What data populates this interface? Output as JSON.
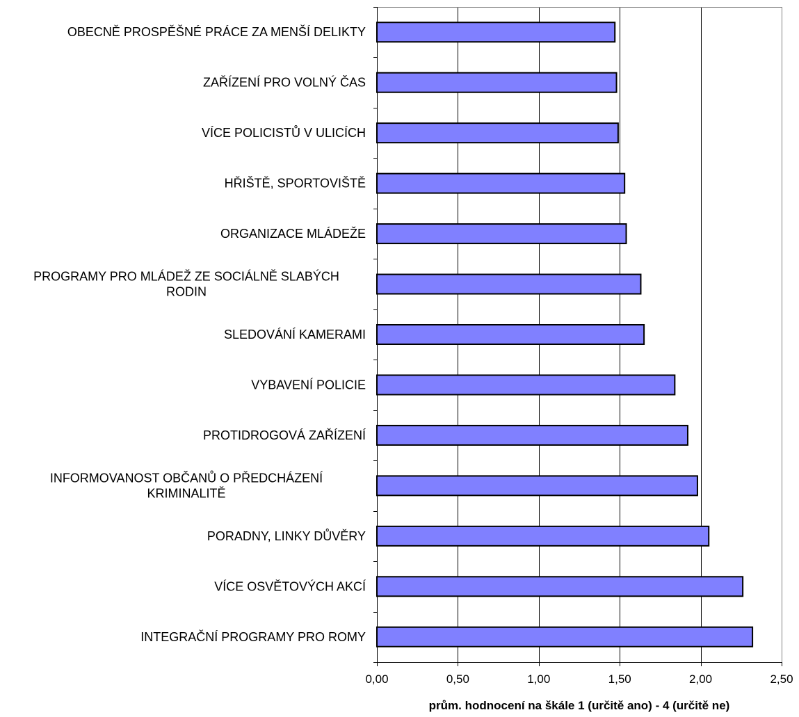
{
  "chart_data": {
    "type": "bar",
    "orientation": "horizontal",
    "categories": [
      [
        "OBECNĚ PROSPĚŠNÉ PRÁCE ZA MENŠÍ DELIKTY"
      ],
      [
        "ZAŘÍZENÍ PRO VOLNÝ ČAS"
      ],
      [
        "VÍCE POLICISTŮ V ULICÍCH"
      ],
      [
        "HŘIŠTĚ, SPORTOVIŠTĚ"
      ],
      [
        "ORGANIZACE MLÁDEŽE"
      ],
      [
        "PROGRAMY PRO MLÁDEŽ ZE SOCIÁLNĚ SLABÝCH",
        "RODIN"
      ],
      [
        "SLEDOVÁNÍ KAMERAMI"
      ],
      [
        "VYBAVENÍ POLICIE"
      ],
      [
        "PROTIDROGOVÁ ZAŘÍZENÍ"
      ],
      [
        "INFORMOVANOST OBČANŮ O PŘEDCHÁZENÍ",
        "KRIMINALITĚ"
      ],
      [
        "PORADNY, LINKY DŮVĚRY"
      ],
      [
        "VÍCE OSVĚTOVÝCH AKCÍ"
      ],
      [
        "INTEGRAČNÍ PROGRAMY PRO ROMY"
      ]
    ],
    "values": [
      1.47,
      1.48,
      1.49,
      1.53,
      1.54,
      1.63,
      1.65,
      1.84,
      1.92,
      1.98,
      2.05,
      2.26,
      2.32
    ],
    "xlabel": "prům. hodnocení na škále 1 (určitě ano) - 4 (určitě ne)",
    "xlim": [
      0,
      2.5
    ],
    "xticks": [
      "0,00",
      "0,50",
      "1,00",
      "1,50",
      "2,00",
      "2,50"
    ],
    "xtick_values": [
      0,
      0.5,
      1,
      1.5,
      2,
      2.5
    ],
    "grid": "vertical",
    "legend": "none",
    "colors": {
      "bar": "#8080ff",
      "bar_border": "#000000",
      "grid": "#000000",
      "frame": "#808080"
    }
  }
}
